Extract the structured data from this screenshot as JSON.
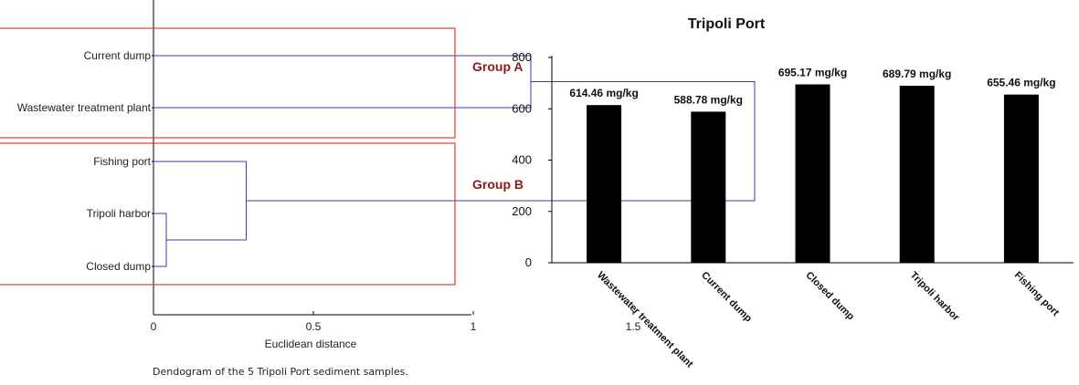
{
  "chart_data": [
    {
      "type": "dendrogram",
      "leaves": [
        "Current dump",
        "Wastewater treatment plant",
        "Fishing port",
        "Tripoli harbor",
        "Closed dump"
      ],
      "merges": [
        {
          "between": [
            "Tripoli harbor",
            "Closed dump"
          ],
          "height": 0.04
        },
        {
          "between": [
            "Fishing port",
            "Tripoli harbor + Closed dump"
          ],
          "height": 0.29
        },
        {
          "between": [
            "Current dump",
            "Wastewater treatment plant"
          ],
          "height": 1.18
        },
        {
          "between": [
            "Group A",
            "Group B"
          ],
          "height": 1.88
        }
      ],
      "groups": [
        {
          "label": "Group A",
          "members": [
            "Current dump",
            "Wastewater treatment plant"
          ]
        },
        {
          "label": "Group B",
          "members": [
            "Fishing port",
            "Tripoli harbor",
            "Closed dump"
          ]
        }
      ],
      "xticks": [
        "0",
        "0.5",
        "1",
        "1.5"
      ],
      "xlabel": "Euclidean distance",
      "xlim": [
        0,
        1.95
      ],
      "caption": "Dendogram of the 5 Tripoli Port sediment samples.",
      "colors": {
        "tree": "#3b3bb0",
        "group_box": "#e03c3c",
        "group_label": "#8b1a1a"
      }
    },
    {
      "type": "bar",
      "title": "Tripoli Port",
      "categories": [
        "Wastewater treatment plant",
        "Current dump",
        "Closed dump",
        "Tripoli harbor",
        "Fishing port"
      ],
      "values": [
        614.46,
        588.78,
        695.17,
        689.79,
        655.46
      ],
      "value_labels": [
        "614.46 mg/kg",
        "588.78 mg/kg",
        "695.17 mg/kg",
        "689.79 mg/kg",
        "655.46 mg/kg"
      ],
      "yticks": [
        "0",
        "200",
        "400",
        "600",
        "800"
      ],
      "ylim": [
        0,
        800
      ],
      "colors": {
        "bar": "#000000"
      }
    }
  ]
}
